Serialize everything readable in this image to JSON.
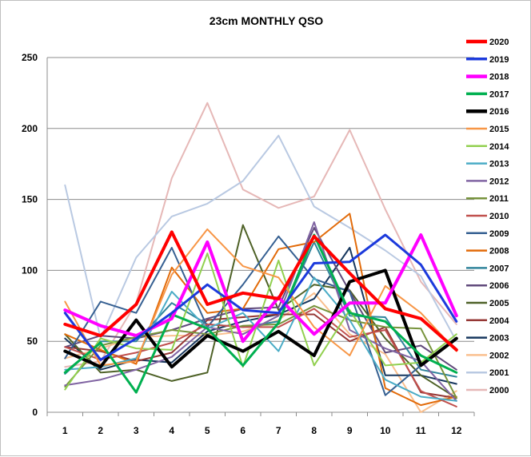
{
  "chart_data": {
    "type": "line",
    "title": "23cm MONTHLY QSO",
    "xlabel": "",
    "ylabel": "",
    "categories": [
      "1",
      "2",
      "3",
      "4",
      "5",
      "6",
      "7",
      "8",
      "9",
      "10",
      "11",
      "12"
    ],
    "ylim": [
      0,
      250
    ],
    "yticks": [
      0,
      50,
      100,
      150,
      200,
      250
    ],
    "grid": true,
    "legend": "right",
    "series": [
      {
        "name": "2020",
        "color": "#ff0000",
        "width": 4,
        "values": [
          62,
          54,
          76,
          127,
          76,
          84,
          80,
          124,
          98,
          73,
          66,
          44
        ]
      },
      {
        "name": "2019",
        "color": "#1c3adc",
        "width": 3,
        "values": [
          70,
          37,
          52,
          70,
          90,
          72,
          70,
          105,
          106,
          125,
          104,
          64
        ]
      },
      {
        "name": "2018",
        "color": "#ff00ff",
        "width": 4,
        "values": [
          72,
          61,
          54,
          66,
          120,
          50,
          81,
          55,
          77,
          77,
          125,
          68
        ]
      },
      {
        "name": "2017",
        "color": "#00b050",
        "width": 3,
        "values": [
          28,
          49,
          14,
          69,
          59,
          33,
          63,
          125,
          70,
          64,
          40,
          28
        ]
      },
      {
        "name": "2016",
        "color": "#000000",
        "width": 4,
        "values": [
          43,
          32,
          65,
          32,
          54,
          43,
          57,
          40,
          92,
          100,
          33,
          52
        ]
      },
      {
        "name": "2015",
        "color": "#f79646",
        "width": 2,
        "values": [
          78,
          33,
          36,
          97,
          129,
          103,
          95,
          60,
          40,
          89,
          70,
          43
        ]
      },
      {
        "name": "2014",
        "color": "#92d050",
        "width": 2,
        "values": [
          16,
          52,
          45,
          44,
          112,
          32,
          107,
          33,
          72,
          33,
          35,
          55
        ]
      },
      {
        "name": "2013",
        "color": "#4bacc6",
        "width": 2,
        "values": [
          30,
          32,
          38,
          85,
          59,
          70,
          43,
          95,
          65,
          23,
          11,
          8
        ]
      },
      {
        "name": "2012",
        "color": "#8064a2",
        "width": 2,
        "values": [
          19,
          23,
          30,
          39,
          60,
          55,
          68,
          134,
          58,
          45,
          36,
          8
        ]
      },
      {
        "name": "2011",
        "color": "#77933c",
        "width": 2,
        "values": [
          18,
          47,
          53,
          58,
          55,
          61,
          62,
          75,
          65,
          60,
          59,
          10
        ]
      },
      {
        "name": "2010",
        "color": "#c0504d",
        "width": 2,
        "values": [
          46,
          37,
          42,
          49,
          62,
          60,
          60,
          73,
          53,
          58,
          15,
          4
        ]
      },
      {
        "name": "2009",
        "color": "#366092",
        "width": 2,
        "values": [
          38,
          78,
          70,
          116,
          60,
          90,
          124,
          94,
          85,
          12,
          33,
          52
        ]
      },
      {
        "name": "2008",
        "color": "#e26b0a",
        "width": 2,
        "values": [
          55,
          44,
          34,
          102,
          70,
          73,
          115,
          120,
          140,
          17,
          5,
          11
        ]
      },
      {
        "name": "2007",
        "color": "#31859c",
        "width": 2,
        "values": [
          27,
          50,
          50,
          77,
          62,
          60,
          64,
          120,
          68,
          67,
          30,
          25
        ]
      },
      {
        "name": "2006",
        "color": "#604a7b",
        "width": 2,
        "values": [
          46,
          54,
          52,
          58,
          66,
          73,
          74,
          130,
          85,
          42,
          47,
          30
        ]
      },
      {
        "name": "2005",
        "color": "#4f6228",
        "width": 2,
        "values": [
          55,
          28,
          30,
          22,
          28,
          132,
          72,
          90,
          86,
          52,
          26,
          10
        ]
      },
      {
        "name": "2004",
        "color": "#953735",
        "width": 2,
        "values": [
          46,
          43,
          36,
          42,
          65,
          67,
          69,
          69,
          50,
          60,
          14,
          10
        ]
      },
      {
        "name": "2003",
        "color": "#17375e",
        "width": 2,
        "values": [
          52,
          30,
          37,
          35,
          57,
          64,
          69,
          80,
          116,
          26,
          26,
          20
        ]
      },
      {
        "name": "2002",
        "color": "#fac08f",
        "width": 2,
        "values": [
          38,
          45,
          53,
          54,
          54,
          57,
          65,
          84,
          55,
          41,
          0,
          15
        ]
      },
      {
        "name": "2001",
        "color": "#b9c9e2",
        "width": 2,
        "values": [
          160,
          52,
          109,
          138,
          147,
          163,
          195,
          145,
          130,
          114,
          96,
          50
        ]
      },
      {
        "name": "2000",
        "color": "#e6b8b7",
        "width": 2,
        "values": [
          32,
          36,
          77,
          165,
          218,
          157,
          144,
          152,
          199,
          143,
          92,
          62
        ]
      }
    ]
  }
}
